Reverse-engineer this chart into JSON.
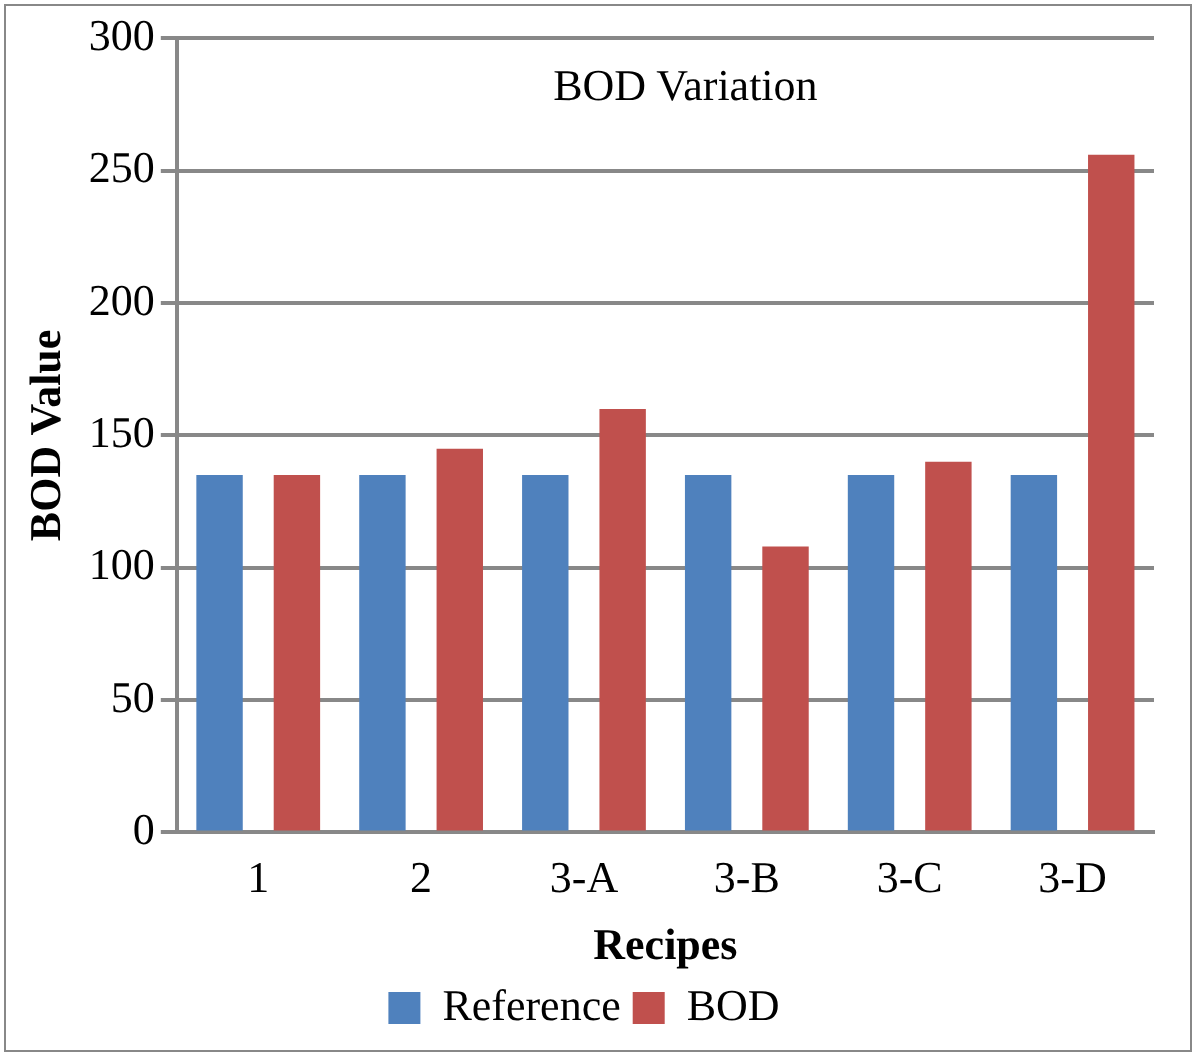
{
  "chart_data": {
    "type": "bar",
    "title": "BOD Variation",
    "xlabel": "Recipes",
    "ylabel": "BOD Value",
    "categories": [
      "1",
      "2",
      "3-A",
      "3-B",
      "3-C",
      "3-D"
    ],
    "series": [
      {
        "name": "Reference",
        "color": "#4f81bd",
        "values": [
          135,
          135,
          135,
          135,
          135,
          135
        ]
      },
      {
        "name": "BOD",
        "color": "#c0504d",
        "values": [
          135,
          145,
          160,
          108,
          140,
          256
        ]
      }
    ],
    "ylim": [
      0,
      300
    ],
    "yticks": [
      0,
      50,
      100,
      150,
      200,
      250,
      300
    ],
    "grid": "y",
    "legend": "bottom"
  }
}
